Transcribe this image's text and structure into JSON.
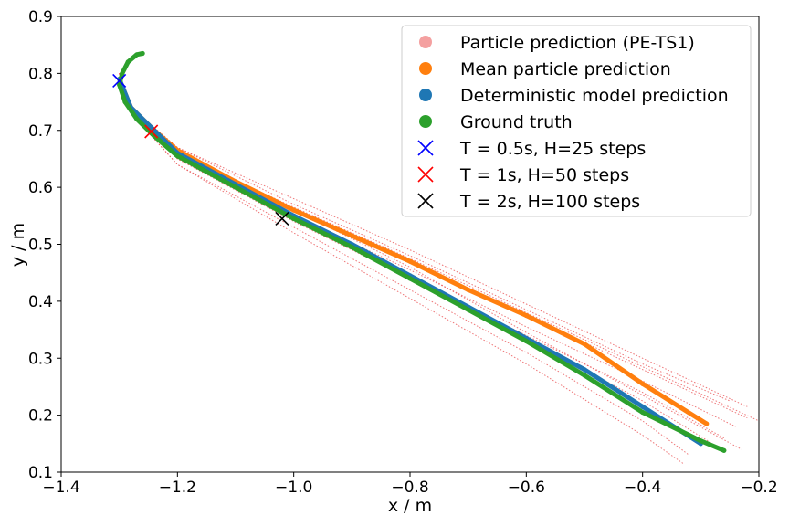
{
  "chart_data": {
    "type": "scatter",
    "xlabel": "x / m",
    "ylabel": "y / m",
    "xlim": [
      -1.4,
      -0.2
    ],
    "ylim": [
      0.1,
      0.9
    ],
    "xticks": [
      "−1.4",
      "−1.2",
      "−1.0",
      "−0.8",
      "−0.6",
      "−0.4",
      "−0.2"
    ],
    "xtick_values": [
      -1.4,
      -1.2,
      -1.0,
      -0.8,
      -0.6,
      -0.4,
      -0.2
    ],
    "yticks": [
      "0.1",
      "0.2",
      "0.3",
      "0.4",
      "0.5",
      "0.6",
      "0.7",
      "0.8",
      "0.9"
    ],
    "ytick_values": [
      0.1,
      0.2,
      0.3,
      0.4,
      0.5,
      0.6,
      0.7,
      0.8,
      0.9
    ],
    "grid": false,
    "legend_position": "top-right",
    "series": [
      {
        "name": "Particle prediction (PE-TS1)",
        "kind": "dotted-lines",
        "color": "#f08080",
        "particles": [
          [
            [
              -1.3,
              0.8
            ],
            [
              -1.28,
              0.74
            ],
            [
              -1.2,
              0.66
            ],
            [
              -1.0,
              0.56
            ],
            [
              -0.8,
              0.46
            ],
            [
              -0.6,
              0.345
            ],
            [
              -0.4,
              0.235
            ],
            [
              -0.23,
              0.14
            ]
          ],
          [
            [
              -1.3,
              0.8
            ],
            [
              -1.28,
              0.74
            ],
            [
              -1.2,
              0.66
            ],
            [
              -1.0,
              0.56
            ],
            [
              -0.8,
              0.47
            ],
            [
              -0.6,
              0.375
            ],
            [
              -0.4,
              0.28
            ],
            [
              -0.22,
              0.195
            ]
          ],
          [
            [
              -1.3,
              0.8
            ],
            [
              -1.28,
              0.74
            ],
            [
              -1.2,
              0.67
            ],
            [
              -1.0,
              0.58
            ],
            [
              -0.8,
              0.49
            ],
            [
              -0.6,
              0.395
            ],
            [
              -0.4,
              0.3
            ],
            [
              -0.22,
              0.215
            ]
          ],
          [
            [
              -1.3,
              0.8
            ],
            [
              -1.28,
              0.73
            ],
            [
              -1.2,
              0.65
            ],
            [
              -1.0,
              0.54
            ],
            [
              -0.8,
              0.44
            ],
            [
              -0.6,
              0.34
            ],
            [
              -0.4,
              0.24
            ],
            [
              -0.26,
              0.16
            ]
          ],
          [
            [
              -1.3,
              0.8
            ],
            [
              -1.28,
              0.73
            ],
            [
              -1.2,
              0.64
            ],
            [
              -1.0,
              0.53
            ],
            [
              -0.8,
              0.42
            ],
            [
              -0.6,
              0.31
            ],
            [
              -0.4,
              0.19
            ],
            [
              -0.32,
              0.13
            ]
          ],
          [
            [
              -1.3,
              0.8
            ],
            [
              -1.28,
              0.73
            ],
            [
              -1.2,
              0.64
            ],
            [
              -1.0,
              0.52
            ],
            [
              -0.8,
              0.405
            ],
            [
              -0.6,
              0.29
            ],
            [
              -0.4,
              0.165
            ],
            [
              -0.33,
              0.115
            ]
          ],
          [
            [
              -1.3,
              0.8
            ],
            [
              -1.28,
              0.74
            ],
            [
              -1.2,
              0.66
            ],
            [
              -1.0,
              0.55
            ],
            [
              -0.8,
              0.455
            ],
            [
              -0.6,
              0.355
            ],
            [
              -0.4,
              0.26
            ],
            [
              -0.24,
              0.18
            ]
          ],
          [
            [
              -1.3,
              0.8
            ],
            [
              -1.28,
              0.74
            ],
            [
              -1.2,
              0.67
            ],
            [
              -1.0,
              0.57
            ],
            [
              -0.8,
              0.48
            ],
            [
              -0.6,
              0.385
            ],
            [
              -0.4,
              0.29
            ],
            [
              -0.25,
              0.225
            ]
          ],
          [
            [
              -1.3,
              0.8
            ],
            [
              -1.28,
              0.73
            ],
            [
              -1.2,
              0.65
            ],
            [
              -1.0,
              0.545
            ],
            [
              -0.8,
              0.445
            ],
            [
              -0.6,
              0.335
            ],
            [
              -0.4,
              0.225
            ],
            [
              -0.28,
              0.15
            ]
          ],
          [
            [
              -1.3,
              0.8
            ],
            [
              -1.28,
              0.74
            ],
            [
              -1.2,
              0.66
            ],
            [
              -1.0,
              0.565
            ],
            [
              -0.8,
              0.475
            ],
            [
              -0.6,
              0.38
            ],
            [
              -0.4,
              0.285
            ],
            [
              -0.2,
              0.19
            ]
          ]
        ]
      },
      {
        "name": "Mean particle prediction",
        "kind": "thick-points",
        "color": "#ff7f0e",
        "points": [
          [
            -1.3,
            0.79
          ],
          [
            -1.28,
            0.74
          ],
          [
            -1.24,
            0.7
          ],
          [
            -1.2,
            0.665
          ],
          [
            -1.1,
            0.61
          ],
          [
            -1.0,
            0.56
          ],
          [
            -0.9,
            0.515
          ],
          [
            -0.8,
            0.47
          ],
          [
            -0.7,
            0.42
          ],
          [
            -0.6,
            0.375
          ],
          [
            -0.5,
            0.325
          ],
          [
            -0.4,
            0.255
          ],
          [
            -0.29,
            0.185
          ]
        ]
      },
      {
        "name": "Deterministic model prediction",
        "kind": "thick-points",
        "color": "#1f77b4",
        "points": [
          [
            -1.3,
            0.79
          ],
          [
            -1.28,
            0.74
          ],
          [
            -1.24,
            0.7
          ],
          [
            -1.2,
            0.66
          ],
          [
            -1.1,
            0.605
          ],
          [
            -1.0,
            0.55
          ],
          [
            -0.9,
            0.5
          ],
          [
            -0.8,
            0.445
          ],
          [
            -0.7,
            0.39
          ],
          [
            -0.6,
            0.335
          ],
          [
            -0.5,
            0.28
          ],
          [
            -0.4,
            0.215
          ],
          [
            -0.3,
            0.15
          ]
        ]
      },
      {
        "name": "Ground truth",
        "kind": "thick-points",
        "color": "#2ca02c",
        "points": [
          [
            -1.26,
            0.835
          ],
          [
            -1.27,
            0.833
          ],
          [
            -1.285,
            0.82
          ],
          [
            -1.295,
            0.8
          ],
          [
            -1.3,
            0.78
          ],
          [
            -1.29,
            0.75
          ],
          [
            -1.27,
            0.72
          ],
          [
            -1.24,
            0.69
          ],
          [
            -1.2,
            0.655
          ],
          [
            -1.1,
            0.6
          ],
          [
            -1.0,
            0.545
          ],
          [
            -0.9,
            0.495
          ],
          [
            -0.8,
            0.44
          ],
          [
            -0.7,
            0.385
          ],
          [
            -0.6,
            0.33
          ],
          [
            -0.5,
            0.27
          ],
          [
            -0.4,
            0.205
          ],
          [
            -0.3,
            0.155
          ],
          [
            -0.26,
            0.138
          ]
        ]
      },
      {
        "name": "T = 0.5s, H=25 steps",
        "kind": "x-marker",
        "color": "#0000ff",
        "points": [
          [
            -1.3,
            0.787
          ]
        ]
      },
      {
        "name": "T = 1s, H=50 steps",
        "kind": "x-marker",
        "color": "#ff0000",
        "points": [
          [
            -1.245,
            0.698
          ]
        ]
      },
      {
        "name": "T = 2s, H=100 steps",
        "kind": "x-marker",
        "color": "#000000",
        "points": [
          [
            -1.02,
            0.545
          ]
        ]
      }
    ]
  }
}
